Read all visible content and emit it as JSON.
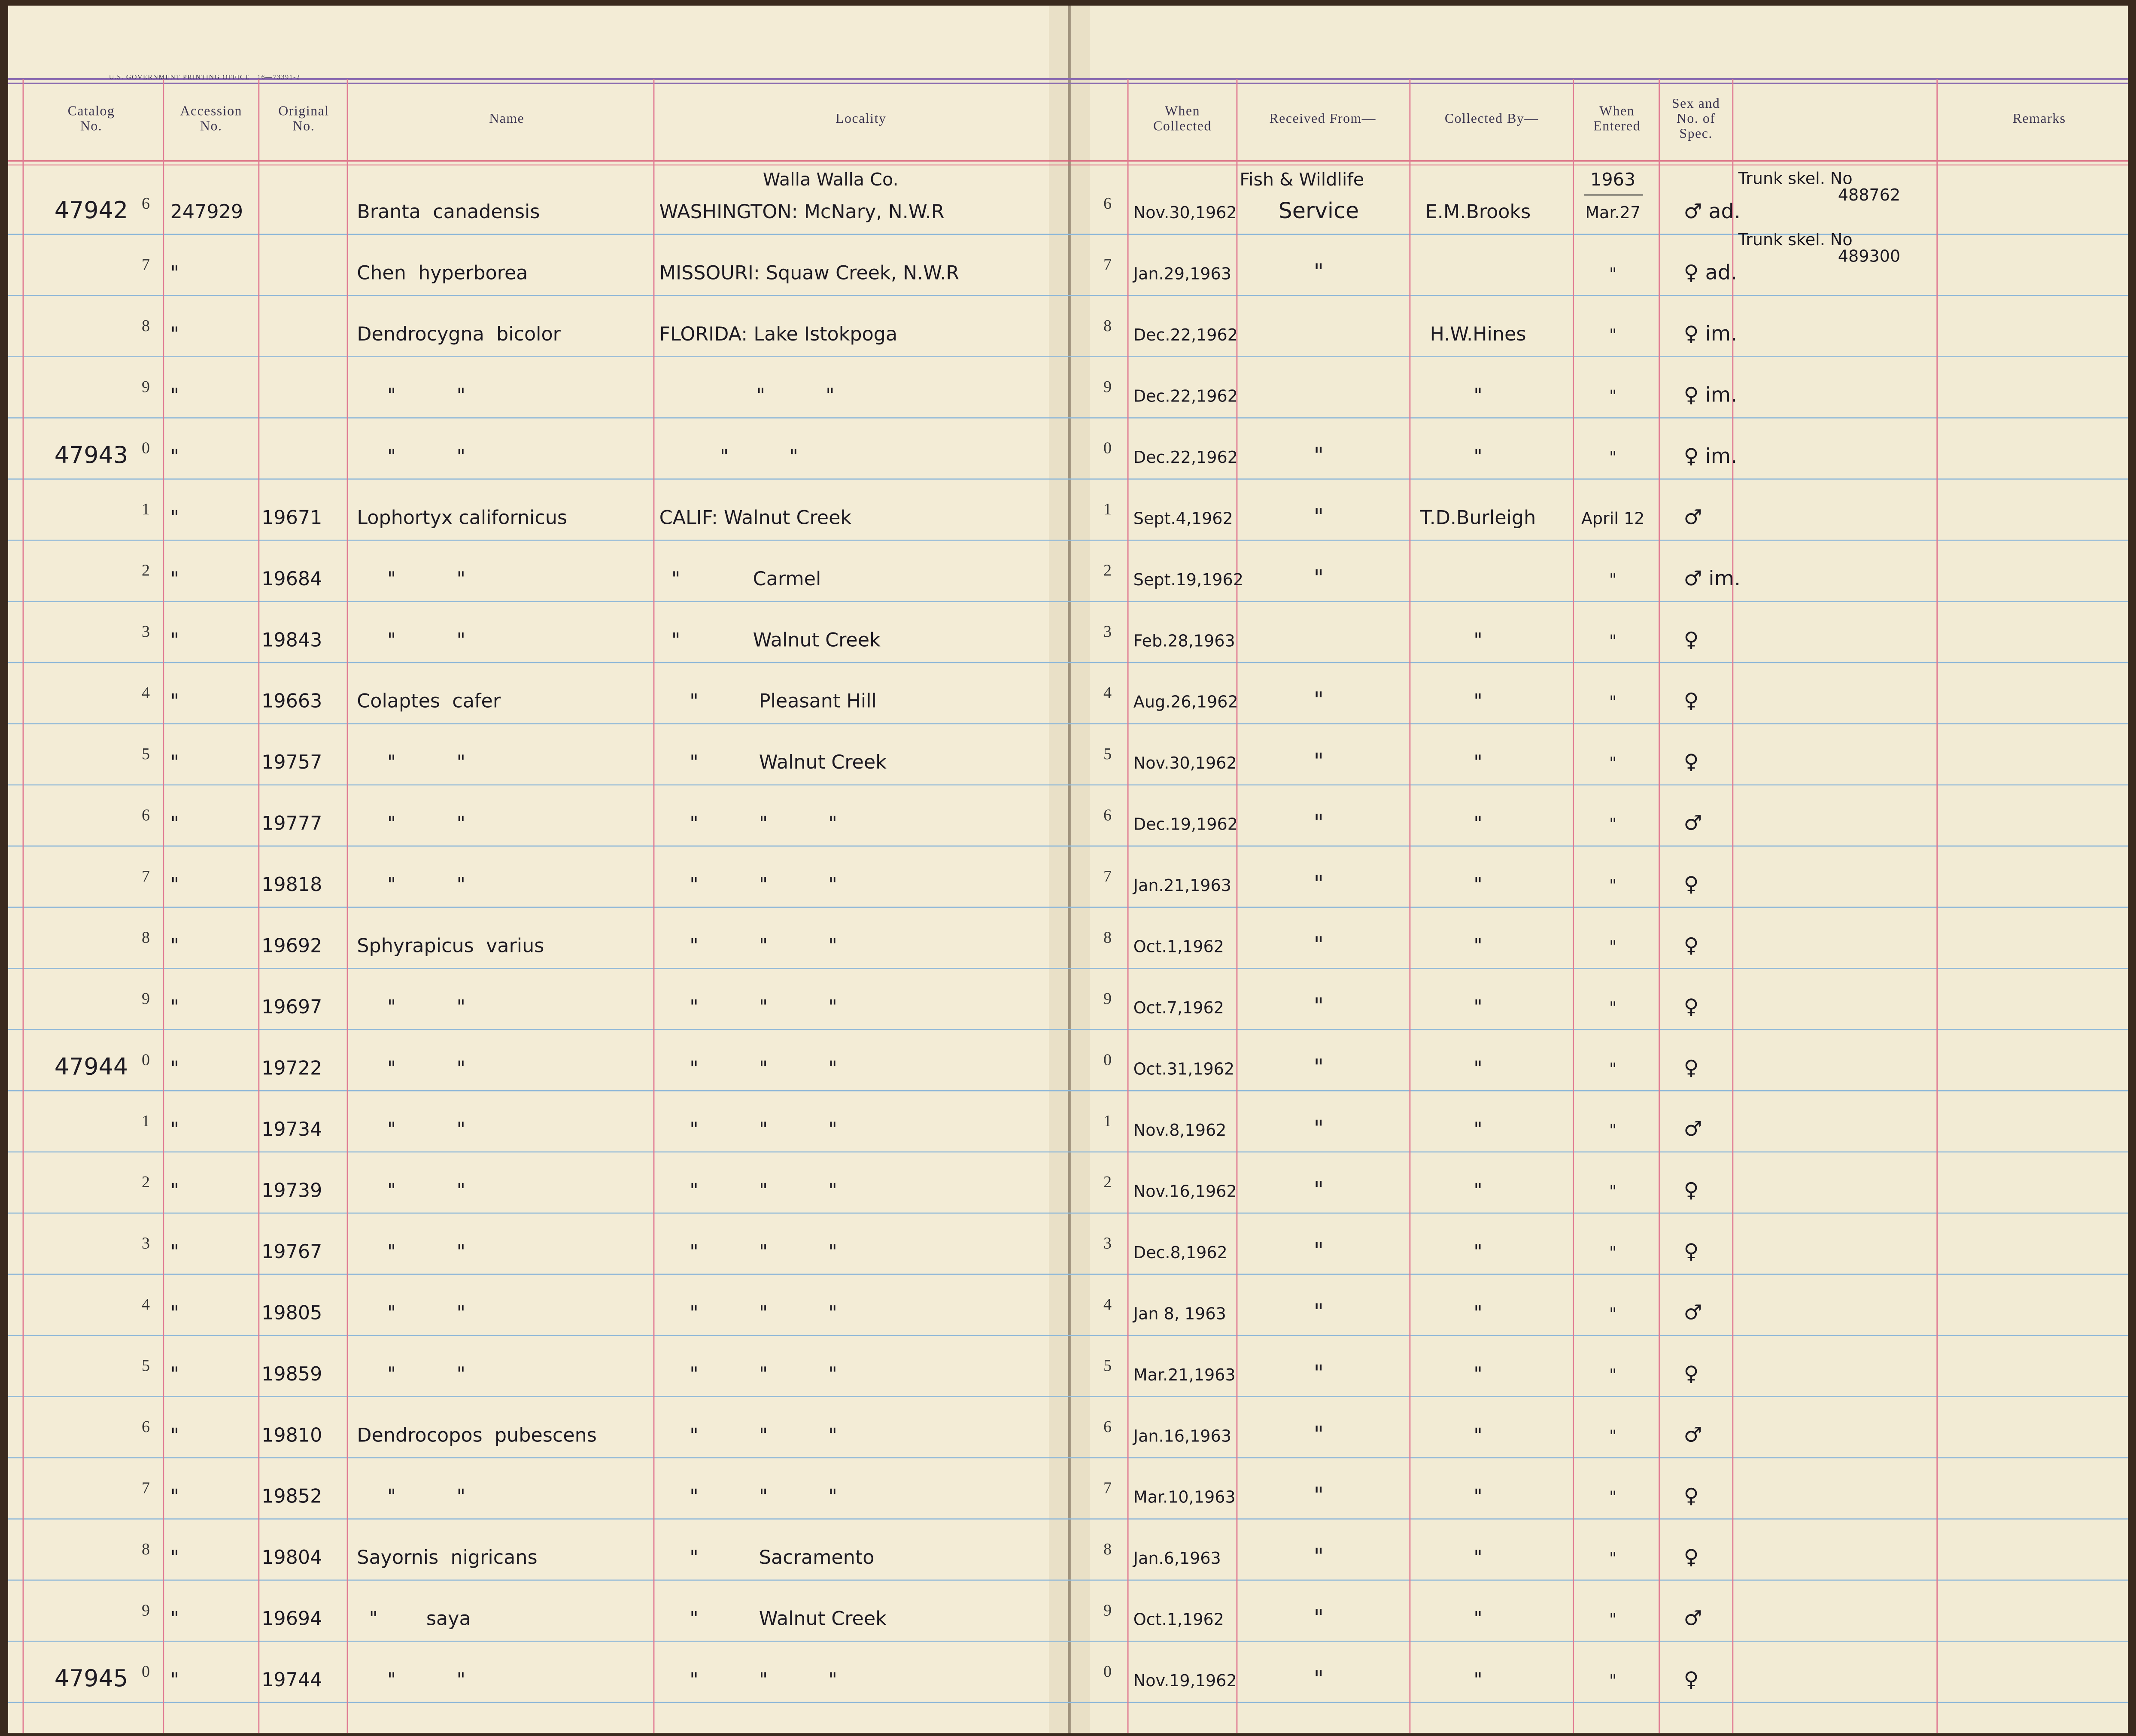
{
  "header": {
    "printer": "U.S. GOVERNMENT PRINTING OFFICE   16—73391-2",
    "left_columns": [
      {
        "lines": [
          "Catalog",
          "No."
        ]
      },
      {
        "lines": [
          "Accession",
          "No."
        ]
      },
      {
        "lines": [
          "Original",
          "No."
        ]
      },
      {
        "lines": [
          "Name"
        ]
      },
      {
        "lines": [
          "Locality"
        ]
      }
    ],
    "right_columns": [
      {
        "lines": [
          "When",
          "Collected"
        ]
      },
      {
        "lines": [
          "Received From—"
        ]
      },
      {
        "lines": [
          "Collected By—"
        ]
      },
      {
        "lines": [
          "When",
          "Entered"
        ]
      },
      {
        "lines": [
          "Sex and",
          "No. of",
          "Spec."
        ]
      },
      {
        "lines": [
          "Remarks"
        ]
      }
    ]
  },
  "rows": [
    {
      "prefix": "47942",
      "digit": "6",
      "acc": "247929",
      "name": "Branta  canadensis",
      "loc_note": "Walla Walla Co.",
      "loc": "WASHINGTON: McNary, N.W.R",
      "rdigit": "6",
      "when": "Nov.30,1962",
      "recv_note": "Fish & Wildlife",
      "recv": "Service",
      "coll": "E.M.Brooks",
      "ent_note": "1963",
      "ent": "Mar.27",
      "sex": "♂ ad.",
      "remarks": [
        "Trunk skel. No",
        "488762"
      ]
    },
    {
      "digit": "7",
      "acc": "\"",
      "name": "Chen  hyperborea",
      "loc": "MISSOURI: Squaw Creek, N.W.R",
      "rdigit": "7",
      "when": "Jan.29,1963",
      "recv": "\"",
      "ent": "\"",
      "sex": "♀ ad.",
      "remarks": [
        "Trunk skel. No",
        "489300"
      ]
    },
    {
      "digit": "8",
      "acc": "\"",
      "name": "Dendrocygna  bicolor",
      "loc": "FLORIDA: Lake Istokpoga",
      "rdigit": "8",
      "when": "Dec.22,1962",
      "coll": "H.W.Hines",
      "ent": "\"",
      "sex": "♀ im."
    },
    {
      "digit": "9",
      "acc": "\"",
      "name": "     \"          \"",
      "loc": "                \"          \"",
      "rdigit": "9",
      "when": "Dec.22,1962",
      "coll": "\"",
      "ent": "\"",
      "sex": "♀ im."
    },
    {
      "prefix": "47943",
      "digit": "0",
      "acc": "\"",
      "name": "     \"          \"",
      "loc": "          \"          \"",
      "rdigit": "0",
      "when": "Dec.22,1962",
      "recv": "\"",
      "coll": "\"",
      "ent": "\"",
      "sex": "♀ im."
    },
    {
      "digit": "1",
      "acc": "\"",
      "orig": "19671",
      "name": "Lophortyx californicus",
      "loc": "CALIF: Walnut Creek",
      "rdigit": "1",
      "when": "Sept.4,1962",
      "recv": "\"",
      "coll": "T.D.Burleigh",
      "ent": "April 12",
      "sex": "♂"
    },
    {
      "digit": "2",
      "acc": "\"",
      "orig": "19684",
      "name": "     \"          \"",
      "loc": "  \"            Carmel",
      "rdigit": "2",
      "when": "Sept.19,1962",
      "recv": "\"",
      "ent": "\"",
      "sex": "♂ im."
    },
    {
      "digit": "3",
      "acc": "\"",
      "orig": "19843",
      "name": "     \"          \"",
      "loc": "  \"            Walnut Creek",
      "rdigit": "3",
      "when": "Feb.28,1963",
      "coll": "\"",
      "ent": "\"",
      "sex": "♀"
    },
    {
      "digit": "4",
      "acc": "\"",
      "orig": "19663",
      "name": "Colaptes  cafer",
      "loc": "     \"          Pleasant Hill",
      "rdigit": "4",
      "when": "Aug.26,1962",
      "recv": "\"",
      "coll": "\"",
      "ent": "\"",
      "sex": "♀"
    },
    {
      "digit": "5",
      "acc": "\"",
      "orig": "19757",
      "name": "     \"          \"",
      "loc": "     \"          Walnut Creek",
      "rdigit": "5",
      "when": "Nov.30,1962",
      "recv": "\"",
      "coll": "\"",
      "ent": "\"",
      "sex": "♀"
    },
    {
      "digit": "6",
      "acc": "\"",
      "orig": "19777",
      "name": "     \"          \"",
      "loc": "     \"          \"          \"",
      "rdigit": "6",
      "when": "Dec.19,1962",
      "recv": "\"",
      "coll": "\"",
      "ent": "\"",
      "sex": "♂"
    },
    {
      "digit": "7",
      "acc": "\"",
      "orig": "19818",
      "name": "     \"          \"",
      "loc": "     \"          \"          \"",
      "rdigit": "7",
      "when": "Jan.21,1963",
      "recv": "\"",
      "coll": "\"",
      "ent": "\"",
      "sex": "♀"
    },
    {
      "digit": "8",
      "acc": "\"",
      "orig": "19692",
      "name": "Sphyrapicus  varius",
      "loc": "     \"          \"          \"",
      "rdigit": "8",
      "when": "Oct.1,1962",
      "recv": "\"",
      "coll": "\"",
      "ent": "\"",
      "sex": "♀"
    },
    {
      "digit": "9",
      "acc": "\"",
      "orig": "19697",
      "name": "     \"          \"",
      "loc": "     \"          \"          \"",
      "rdigit": "9",
      "when": "Oct.7,1962",
      "recv": "\"",
      "coll": "\"",
      "ent": "\"",
      "sex": "♀"
    },
    {
      "prefix": "47944",
      "digit": "0",
      "acc": "\"",
      "orig": "19722",
      "name": "     \"          \"",
      "loc": "     \"          \"          \"",
      "rdigit": "0",
      "when": "Oct.31,1962",
      "recv": "\"",
      "coll": "\"",
      "ent": "\"",
      "sex": "♀"
    },
    {
      "digit": "1",
      "acc": "\"",
      "orig": "19734",
      "name": "     \"          \"",
      "loc": "     \"          \"          \"",
      "rdigit": "1",
      "when": "Nov.8,1962",
      "recv": "\"",
      "coll": "\"",
      "ent": "\"",
      "sex": "♂"
    },
    {
      "digit": "2",
      "acc": "\"",
      "orig": "19739",
      "name": "     \"          \"",
      "loc": "     \"          \"          \"",
      "rdigit": "2",
      "when": "Nov.16,1962",
      "recv": "\"",
      "coll": "\"",
      "ent": "\"",
      "sex": "♀"
    },
    {
      "digit": "3",
      "acc": "\"",
      "orig": "19767",
      "name": "     \"          \"",
      "loc": "     \"          \"          \"",
      "rdigit": "3",
      "when": "Dec.8,1962",
      "recv": "\"",
      "coll": "\"",
      "ent": "\"",
      "sex": "♀"
    },
    {
      "digit": "4",
      "acc": "\"",
      "orig": "19805",
      "name": "     \"          \"",
      "loc": "     \"          \"          \"",
      "rdigit": "4",
      "when": "Jan 8, 1963",
      "recv": "\"",
      "coll": "\"",
      "ent": "\"",
      "sex": "♂"
    },
    {
      "digit": "5",
      "acc": "\"",
      "orig": "19859",
      "name": "     \"          \"",
      "loc": "     \"          \"          \"",
      "rdigit": "5",
      "when": "Mar.21,1963",
      "recv": "\"",
      "coll": "\"",
      "ent": "\"",
      "sex": "♀"
    },
    {
      "digit": "6",
      "acc": "\"",
      "orig": "19810",
      "name": "Dendrocopos  pubescens",
      "loc": "     \"          \"          \"",
      "rdigit": "6",
      "when": "Jan.16,1963",
      "recv": "\"",
      "coll": "\"",
      "ent": "\"",
      "sex": "♂"
    },
    {
      "digit": "7",
      "acc": "\"",
      "orig": "19852",
      "name": "     \"          \"",
      "loc": "     \"          \"          \"",
      "rdigit": "7",
      "when": "Mar.10,1963",
      "recv": "\"",
      "coll": "\"",
      "ent": "\"",
      "sex": "♀"
    },
    {
      "digit": "8",
      "acc": "\"",
      "orig": "19804",
      "name": "Sayornis  nigricans",
      "loc": "     \"          Sacramento",
      "rdigit": "8",
      "when": "Jan.6,1963",
      "recv": "\"",
      "coll": "\"",
      "ent": "\"",
      "sex": "♀"
    },
    {
      "digit": "9",
      "acc": "\"",
      "orig": "19694",
      "name": "  \"        saya",
      "loc": "     \"          Walnut Creek",
      "rdigit": "9",
      "when": "Oct.1,1962",
      "recv": "\"",
      "coll": "\"",
      "ent": "\"",
      "sex": "♂"
    },
    {
      "prefix": "47945",
      "digit": "0",
      "acc": "\"",
      "orig": "19744",
      "name": "     \"          \"",
      "loc": "     \"          \"          \"",
      "rdigit": "0",
      "when": "Nov.19,1962",
      "recv": "\"",
      "coll": "\"",
      "ent": "\"",
      "sex": "♀"
    }
  ]
}
